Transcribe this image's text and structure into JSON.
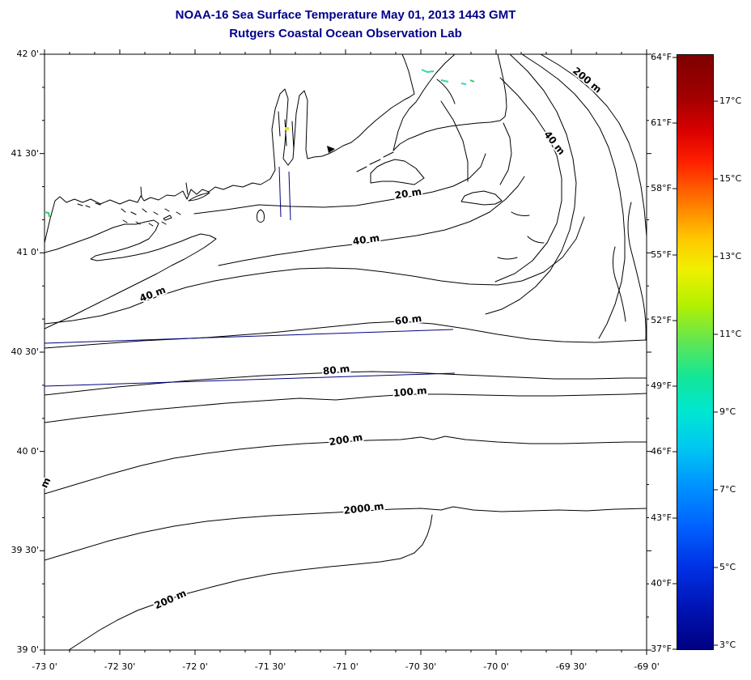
{
  "header": {
    "title": "NOAA-16 Sea Surface Temperature May 01, 2013 1443 GMT",
    "subtitle": "Rutgers Coastal Ocean Observation Lab",
    "title_color": "#00008B"
  },
  "axes": {
    "x_labels": [
      "-73 0'",
      "-72 30'",
      "-72 0'",
      "-71 30'",
      "-71 0'",
      "-70 30'",
      "-70 0'",
      "-69 30'",
      "-69 0'"
    ],
    "y_labels": [
      "42 0'",
      "41 30'",
      "41 0'",
      "40 30'",
      "40 0'",
      "39 30'",
      "39 0'"
    ]
  },
  "colorbar": {
    "f_labels": [
      "64°F",
      "61°F",
      "58°F",
      "55°F",
      "52°F",
      "49°F",
      "46°F",
      "43°F",
      "40°F",
      "37°F"
    ],
    "c_labels": [
      "17°C",
      "15°C",
      "13°C",
      "11°C",
      "9°C",
      "7°C",
      "5°C",
      "3°C"
    ],
    "gradient_top_to_bottom": [
      "#7f0000 0%",
      "#a00000 7%",
      "#dc0000 13%",
      "#ff2000 18%",
      "#ff7c00 25%",
      "#ffc800 31%",
      "#f0f000 36%",
      "#b4f000 42%",
      "#64e650 48%",
      "#14e696 54%",
      "#00e6d2 60%",
      "#00c8f0 66%",
      "#0096ff 72%",
      "#0064ff 79%",
      "#0032e6 86%",
      "#0014b4 93%",
      "#000082 100%"
    ]
  },
  "map": {
    "contour_labels": [
      "200 m",
      "40 m",
      "20 m",
      "40 m",
      "40 m",
      "60 m",
      "80 m",
      "100 m",
      "200 m",
      "2000 m",
      "200 m",
      "m"
    ],
    "line_color": "#000000",
    "transect_color": "#000080",
    "sst_patch_colors": [
      "#2ed9a3",
      "#19e0d0",
      "#37c86e",
      "#e6e600"
    ]
  }
}
